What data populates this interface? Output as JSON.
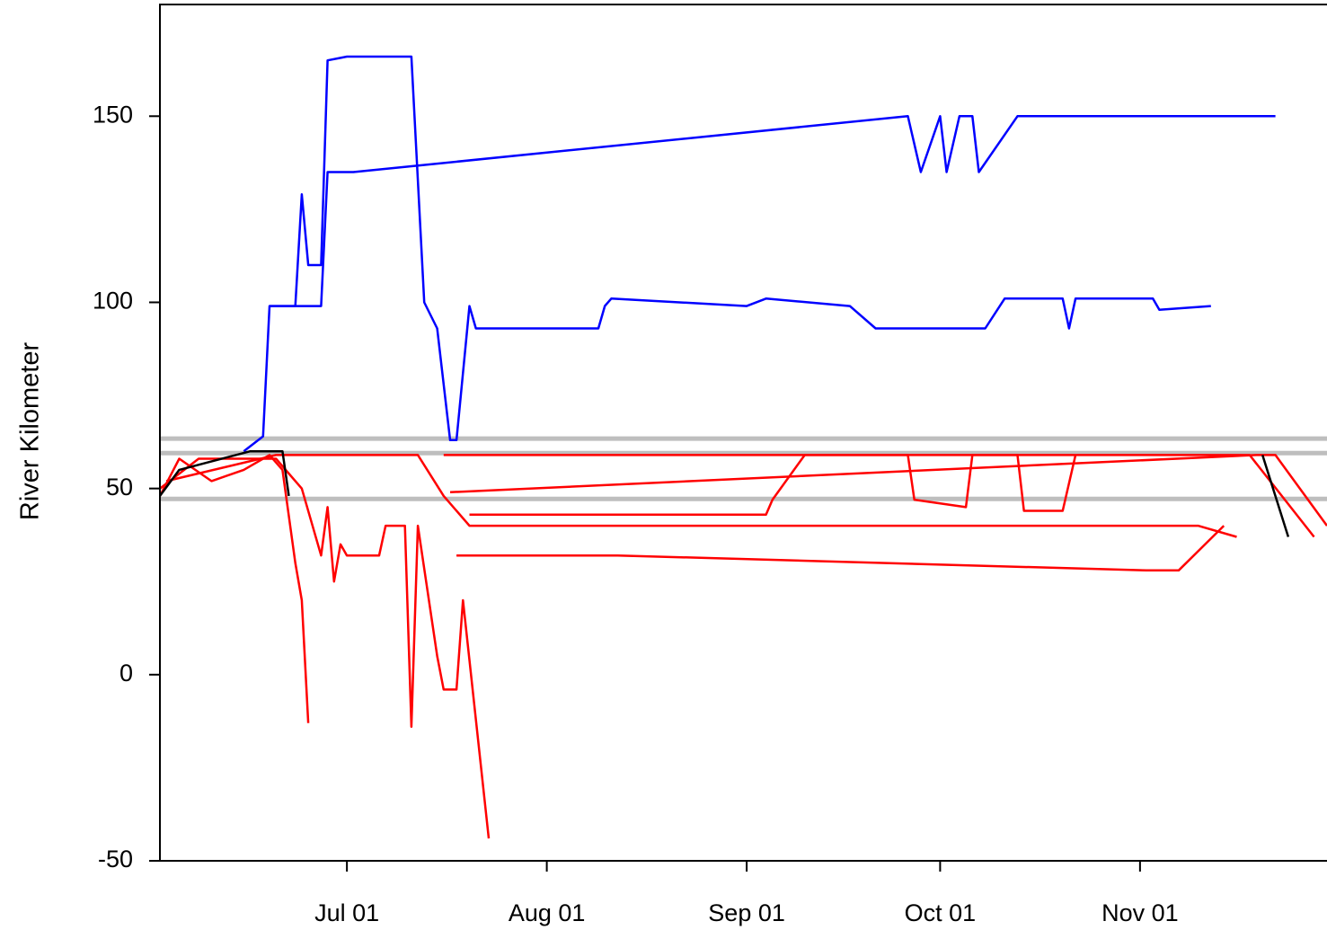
{
  "chart_data": {
    "type": "line",
    "ylabel": "River Kilometer",
    "xlim": [
      "06-02",
      "11-30"
    ],
    "xticks": [
      {
        "value": "07-01",
        "label": "Jul 01"
      },
      {
        "value": "08-01",
        "label": "Aug 01"
      },
      {
        "value": "09-01",
        "label": "Sep 01"
      },
      {
        "value": "10-01",
        "label": "Oct 01"
      },
      {
        "value": "11-01",
        "label": "Nov 01"
      }
    ],
    "ylim": [
      -50,
      180
    ],
    "yticks": [
      -50,
      0,
      50,
      100,
      150
    ],
    "hlines": {
      "values": [
        63.4,
        59.5,
        47.2
      ],
      "color": "#bebebe"
    },
    "series": [
      {
        "color": "#0000ff",
        "x": [
          "06-15",
          "06-18",
          "06-19",
          "06-27",
          "06-28",
          "07-02",
          "09-26",
          "09-28",
          "10-01",
          "10-02",
          "10-04",
          "10-06",
          "10-07",
          "10-13",
          "11-22"
        ],
        "values": [
          60,
          64,
          99,
          99,
          135,
          135,
          150,
          135,
          150,
          135,
          150,
          150,
          135,
          150,
          150
        ]
      },
      {
        "color": "#0000ff",
        "x": [
          "06-19",
          "06-23",
          "06-24",
          "06-25",
          "06-27",
          "06-28",
          "07-01",
          "07-11",
          "07-13",
          "07-15",
          "07-17",
          "07-18",
          "07-20",
          "07-21",
          "08-09",
          "08-10",
          "08-11",
          "09-01",
          "09-04",
          "09-17",
          "09-21",
          "10-08",
          "10-11",
          "10-20",
          "10-21",
          "10-22",
          "11-03",
          "11-04",
          "11-12"
        ],
        "values": [
          99,
          99,
          129,
          110,
          110,
          165,
          166,
          166,
          100,
          93,
          63,
          63,
          99,
          93,
          93,
          99,
          101,
          99,
          101,
          99,
          93,
          93,
          101,
          101,
          93,
          101,
          101,
          98,
          99
        ]
      },
      {
        "color": "#ff0000",
        "x": [
          "06-02",
          "06-05",
          "06-10",
          "06-15",
          "06-19",
          "06-21",
          "06-23",
          "06-24",
          "06-25"
        ],
        "values": [
          48,
          58,
          52,
          55,
          59,
          55,
          30,
          20,
          -13
        ]
      },
      {
        "color": "#ff0000",
        "x": [
          "06-02",
          "06-08",
          "06-20",
          "06-24",
          "06-27",
          "06-28",
          "06-29",
          "06-30",
          "07-01",
          "07-06",
          "07-07",
          "07-10",
          "07-11",
          "07-12",
          "07-15",
          "07-16",
          "07-18",
          "07-19",
          "07-23"
        ],
        "values": [
          50,
          58,
          58,
          50,
          32,
          45,
          25,
          35,
          32,
          32,
          40,
          40,
          -14,
          40,
          5,
          -4,
          -4,
          20,
          -44
        ]
      },
      {
        "color": "#ff0000",
        "x": [
          "06-03",
          "06-20",
          "07-12",
          "07-16",
          "07-20",
          "10-03",
          "11-10",
          "11-16"
        ],
        "values": [
          52,
          59,
          59,
          48,
          40,
          40,
          40,
          37
        ]
      },
      {
        "color": "#ff0000",
        "x": [
          "07-16",
          "11-18",
          "11-28"
        ],
        "values": [
          59,
          59,
          37
        ]
      },
      {
        "color": "#ff0000",
        "x": [
          "07-17",
          "11-19",
          "11-22",
          "11-30"
        ],
        "values": [
          49,
          59,
          59,
          40
        ]
      },
      {
        "color": "#ff0000",
        "x": [
          "07-18",
          "08-12",
          "11-02",
          "11-07",
          "11-14"
        ],
        "values": [
          32,
          32,
          28,
          28,
          40
        ]
      },
      {
        "color": "#ff0000",
        "x": [
          "07-20",
          "08-17",
          "09-04",
          "09-05",
          "09-10",
          "09-26",
          "09-27",
          "10-05",
          "10-06",
          "10-13",
          "10-14",
          "10-20",
          "10-22"
        ],
        "values": [
          43,
          43,
          43,
          47,
          59,
          59,
          47,
          45,
          59,
          59,
          44,
          44,
          59
        ]
      },
      {
        "color": "#000000",
        "x": [
          "06-02",
          "06-05",
          "06-16",
          "06-21",
          "06-22",
          "07-01",
          "11-20",
          "11-24"
        ],
        "values": [
          48,
          55,
          60,
          60,
          48,
          null,
          59,
          37
        ]
      }
    ]
  }
}
